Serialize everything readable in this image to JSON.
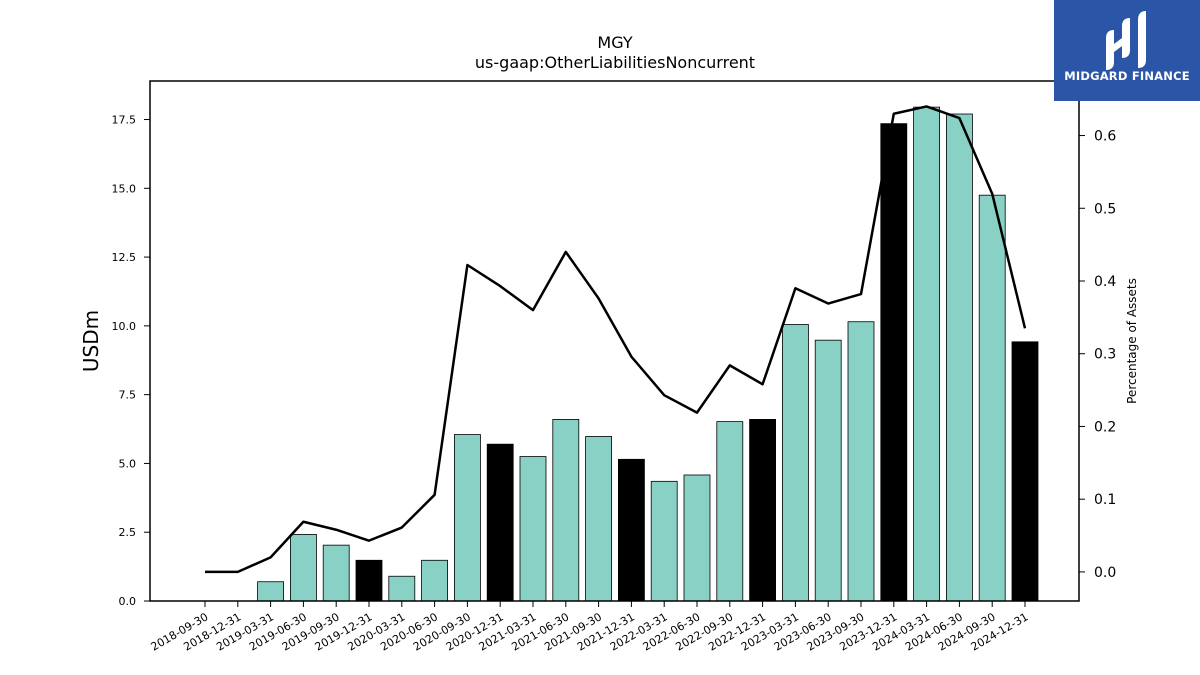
{
  "chart_data": {
    "type": "bar",
    "title": "MGY",
    "subtitle": "us-gaap:OtherLiabilitiesNoncurrent",
    "ylabel": "USDm",
    "y2label": "Percentage of Assets",
    "ylim": [
      0,
      18.9
    ],
    "y2lim": [
      -0.04,
      0.675
    ],
    "yticks": [
      "0.0",
      "2.5",
      "5.0",
      "7.5",
      "10.0",
      "12.5",
      "15.0",
      "17.5"
    ],
    "y2ticks": [
      "0.0",
      "0.1",
      "0.2",
      "0.3",
      "0.4",
      "0.5",
      "0.6"
    ],
    "categories": [
      "2018-09-30",
      "2018-12-31",
      "2019-03-31",
      "2019-06-30",
      "2019-09-30",
      "2019-12-31",
      "2020-03-31",
      "2020-06-30",
      "2020-09-30",
      "2020-12-31",
      "2021-03-31",
      "2021-06-30",
      "2021-09-30",
      "2021-12-31",
      "2022-03-31",
      "2022-06-30",
      "2022-09-30",
      "2022-12-31",
      "2023-03-31",
      "2023-06-30",
      "2023-09-30",
      "2023-12-31",
      "2024-03-31",
      "2024-06-30",
      "2024-09-30",
      "2024-12-31"
    ],
    "series": [
      {
        "type": "bar",
        "values": [
          0,
          0,
          0.7,
          2.42,
          2.03,
          1.48,
          0.9,
          1.48,
          6.05,
          5.7,
          5.25,
          6.6,
          5.98,
          5.15,
          4.35,
          4.58,
          6.52,
          6.6,
          10.05,
          9.48,
          10.15,
          17.35,
          17.95,
          17.7,
          14.75,
          9.42
        ],
        "highlight": [
          false,
          false,
          false,
          false,
          false,
          true,
          false,
          false,
          false,
          true,
          false,
          false,
          false,
          true,
          false,
          false,
          false,
          true,
          false,
          false,
          false,
          true,
          false,
          false,
          false,
          true
        ],
        "color": "#8ad1c5",
        "highlight_color": "#000000"
      },
      {
        "type": "line",
        "axis": "right",
        "values": [
          0.0,
          0.0,
          0.02,
          0.069,
          0.058,
          0.043,
          0.061,
          0.106,
          0.422,
          0.393,
          0.36,
          0.44,
          0.376,
          0.296,
          0.243,
          0.219,
          0.284,
          0.258,
          0.39,
          0.369,
          0.382,
          0.63,
          0.64,
          0.624,
          0.52,
          0.335
        ],
        "color": "#000000"
      }
    ]
  },
  "brand": {
    "name": "MIDGARD FINANCE",
    "background": "#2b56a8",
    "icon": "midgard-logo-icon"
  }
}
